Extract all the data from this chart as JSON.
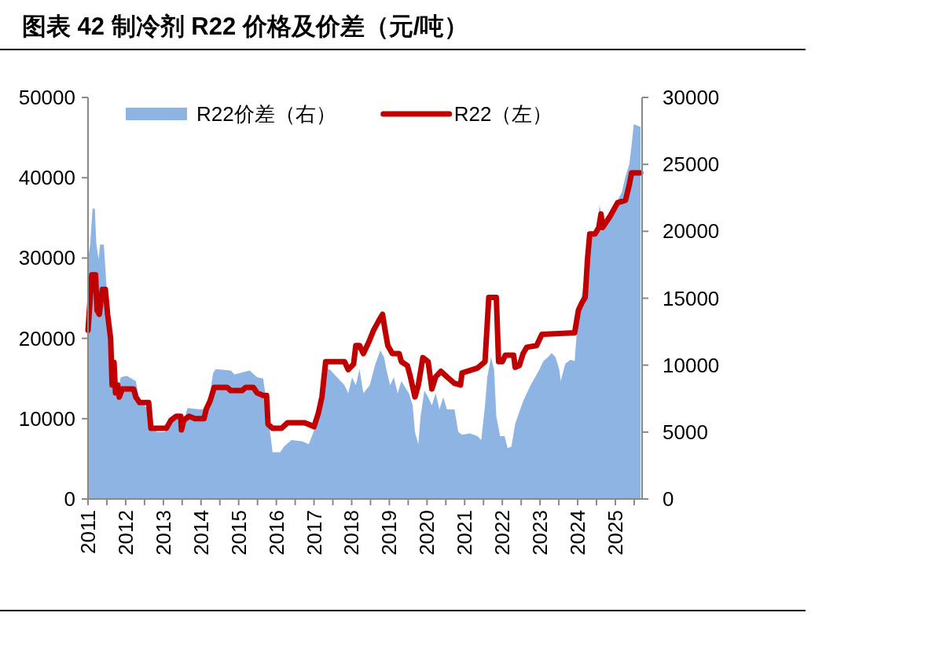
{
  "chart_data": {
    "type": "line",
    "title": "图表 42 制冷剂 R22 价格及价差（元/吨）",
    "xlim": [
      2011,
      2025.71
    ],
    "xticks": [
      2011,
      2012,
      2013,
      2014,
      2015,
      2016,
      2017,
      2018,
      2019,
      2020,
      2021,
      2022,
      2023,
      2024,
      2025,
      {
        "value": 2011.5,
        "label": null
      },
      {
        "value": 2012.5,
        "label": null
      },
      {
        "value": 2013.5,
        "label": null
      },
      {
        "value": 2014.5,
        "label": null
      },
      {
        "value": 2015.5,
        "label": null
      },
      {
        "value": 2016.5,
        "label": null
      },
      {
        "value": 2017.5,
        "label": null
      },
      {
        "value": 2018.5,
        "label": null
      },
      {
        "value": 2019.5,
        "label": null
      },
      {
        "value": 2020.5,
        "label": null
      },
      {
        "value": 2021.5,
        "label": null
      },
      {
        "value": 2022.5,
        "label": null
      },
      {
        "value": 2023.5,
        "label": null
      },
      {
        "value": 2024.5,
        "label": null
      },
      {
        "value": 2025.5,
        "label": null
      }
    ],
    "ylim": [
      0,
      50000
    ],
    "yticks": [
      0,
      10000,
      20000,
      30000,
      40000,
      50000
    ],
    "y2lim": [
      0,
      30000
    ],
    "y2ticks": [
      0,
      5000,
      10000,
      15000,
      20000,
      25000,
      30000
    ],
    "legend": "top",
    "series": [
      {
        "name": "R22价差（右）",
        "type": "area",
        "axis": "y2",
        "color": "#8eb4e3",
        "x": [
          2011.0,
          2011.06,
          2011.12,
          2011.18,
          2011.22,
          2011.28,
          2011.32,
          2011.42,
          2011.48,
          2011.52,
          2011.58,
          2011.64,
          2011.71,
          2011.77,
          2011.87,
          2012.03,
          2012.27,
          2012.37,
          2012.57,
          2012.67,
          2012.83,
          2013.04,
          2013.14,
          2013.28,
          2013.58,
          2013.64,
          2013.98,
          2014.18,
          2014.32,
          2014.39,
          2014.79,
          2014.89,
          2015.29,
          2015.49,
          2015.65,
          2015.72,
          2015.9,
          2016.1,
          2016.2,
          2016.4,
          2016.7,
          2016.86,
          2017.0,
          2017.11,
          2017.27,
          2017.41,
          2017.61,
          2017.81,
          2017.91,
          2018.01,
          2018.11,
          2018.21,
          2018.31,
          2018.48,
          2018.62,
          2018.76,
          2018.86,
          2018.92,
          2019.02,
          2019.12,
          2019.22,
          2019.32,
          2019.52,
          2019.62,
          2019.68,
          2019.77,
          2019.83,
          2019.93,
          2020.03,
          2020.13,
          2020.23,
          2020.33,
          2020.43,
          2020.53,
          2020.73,
          2020.83,
          2020.93,
          2021.14,
          2021.34,
          2021.44,
          2021.54,
          2021.6,
          2021.7,
          2021.78,
          2021.84,
          2021.94,
          2022.06,
          2022.14,
          2022.24,
          2022.34,
          2022.45,
          2022.55,
          2022.75,
          2022.99,
          2023.09,
          2023.21,
          2023.31,
          2023.41,
          2023.51,
          2023.55,
          2023.67,
          2023.81,
          2023.92,
          2023.98,
          2024.06,
          2024.16,
          2024.24,
          2024.28,
          2024.46,
          2024.54,
          2024.58,
          2024.66,
          2024.86,
          2025.06,
          2025.17,
          2025.27,
          2025.37,
          2025.43,
          2025.49,
          2025.67
        ],
        "values": [
          17900,
          19100,
          21700,
          21700,
          19100,
          17900,
          19000,
          19000,
          16400,
          14700,
          11700,
          8500,
          9700,
          7900,
          9100,
          9200,
          8800,
          7300,
          6800,
          5700,
          5000,
          5000,
          5600,
          6200,
          6200,
          6800,
          6700,
          6800,
          9400,
          9700,
          9600,
          9300,
          9600,
          9100,
          9000,
          7600,
          3500,
          3500,
          3900,
          4400,
          4300,
          4100,
          5100,
          6200,
          9700,
          9700,
          9100,
          8500,
          7900,
          9100,
          8500,
          9700,
          7900,
          8500,
          10000,
          11100,
          10600,
          9700,
          8500,
          9100,
          7900,
          8800,
          7900,
          7000,
          5000,
          4100,
          6200,
          8100,
          7600,
          7000,
          7900,
          6700,
          7600,
          6700,
          6700,
          5000,
          4800,
          4900,
          4700,
          4400,
          7000,
          9100,
          10600,
          9700,
          6200,
          4700,
          4700,
          3800,
          3900,
          5600,
          6500,
          7300,
          8500,
          9700,
          10300,
          10600,
          10900,
          10600,
          9700,
          8800,
          10100,
          10400,
          10300,
          12600,
          14400,
          16100,
          17900,
          19800,
          19800,
          20300,
          22000,
          20500,
          21100,
          22300,
          22900,
          24100,
          25000,
          26400,
          28000,
          27800
        ]
      },
      {
        "name": "R22（左）",
        "axis": "y",
        "color": "#c00000",
        "x": [
          2011.0,
          2011.1,
          2011.2,
          2011.24,
          2011.3,
          2011.38,
          2011.46,
          2011.52,
          2011.6,
          2011.64,
          2011.69,
          2011.73,
          2011.79,
          2011.83,
          2011.91,
          2012.21,
          2012.27,
          2012.37,
          2012.61,
          2012.67,
          2013.08,
          2013.2,
          2013.34,
          2013.46,
          2013.48,
          2013.54,
          2013.68,
          2013.84,
          2014.08,
          2014.14,
          2014.24,
          2014.35,
          2014.69,
          2014.79,
          2015.09,
          2015.19,
          2015.39,
          2015.49,
          2015.65,
          2015.74,
          2015.78,
          2015.9,
          2016.14,
          2016.3,
          2016.74,
          2016.86,
          2017.0,
          2017.11,
          2017.21,
          2017.31,
          2017.81,
          2017.91,
          2018.05,
          2018.11,
          2018.21,
          2018.31,
          2018.46,
          2018.58,
          2018.72,
          2018.82,
          2018.88,
          2018.96,
          2019.08,
          2019.26,
          2019.32,
          2019.48,
          2019.56,
          2019.68,
          2019.77,
          2019.89,
          2020.03,
          2020.13,
          2020.23,
          2020.37,
          2020.53,
          2020.73,
          2020.89,
          2020.93,
          2021.34,
          2021.54,
          2021.64,
          2021.84,
          2021.9,
          2022.0,
          2022.08,
          2022.3,
          2022.34,
          2022.45,
          2022.55,
          2022.65,
          2022.91,
          2023.05,
          2023.92,
          2024.02,
          2024.12,
          2024.2,
          2024.26,
          2024.32,
          2024.46,
          2024.56,
          2024.62,
          2024.66,
          2024.86,
          2025.06,
          2025.27,
          2025.37,
          2025.43,
          2025.67
        ],
        "values": [
          21000,
          27900,
          27900,
          23500,
          23000,
          26100,
          26100,
          23000,
          20000,
          14200,
          17000,
          13200,
          14200,
          12700,
          13700,
          13700,
          12700,
          12000,
          12000,
          8800,
          8800,
          9800,
          10300,
          10300,
          8600,
          9800,
          10300,
          10000,
          10000,
          11200,
          12200,
          13900,
          13900,
          13500,
          13500,
          13900,
          13900,
          13200,
          12900,
          12900,
          9300,
          8800,
          8800,
          9500,
          9500,
          9300,
          9000,
          10600,
          12700,
          17100,
          17100,
          16100,
          16800,
          19100,
          19100,
          18100,
          19600,
          21000,
          22200,
          23000,
          21200,
          19100,
          18100,
          18100,
          17100,
          16600,
          15200,
          12700,
          14200,
          17600,
          17100,
          13700,
          15200,
          15900,
          15200,
          14400,
          14200,
          15700,
          16300,
          17100,
          25100,
          25100,
          17100,
          17100,
          17900,
          17900,
          16400,
          16600,
          18100,
          18900,
          19100,
          20500,
          20700,
          23500,
          24500,
          25100,
          29800,
          33000,
          33000,
          33800,
          35500,
          33800,
          35200,
          36900,
          37200,
          39100,
          40600,
          40600
        ]
      }
    ]
  }
}
